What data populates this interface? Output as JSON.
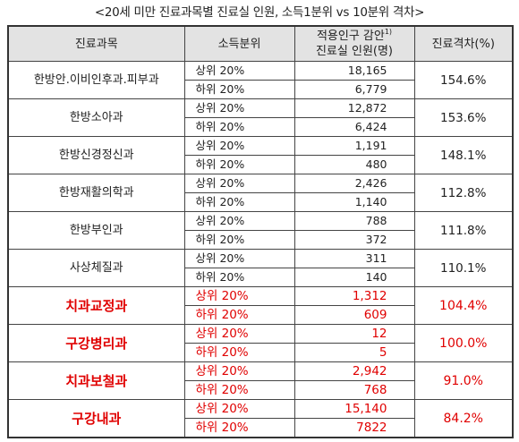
{
  "title": "<20세 미만 진료과목별 진료실 인원, 소득1분위 vs 10분위 격차>",
  "headers": {
    "subject": "진료과목",
    "income": "소득분위",
    "count_line1": "적용인구 감안",
    "count_sup": "1)",
    "count_line2": "진료실 인원(명)",
    "gap": "진료격차(%)"
  },
  "rows": [
    {
      "subject": "한방안.이비인후과.피부과",
      "top_label": "상위 20%",
      "top_value": "18,165",
      "bottom_label": "하위 20%",
      "bottom_value": "6,779",
      "gap": "154.6%",
      "highlight": false
    },
    {
      "subject": "한방소아과",
      "top_label": "상위 20%",
      "top_value": "12,872",
      "bottom_label": "하위 20%",
      "bottom_value": "6,424",
      "gap": "153.6%",
      "highlight": false
    },
    {
      "subject": "한방신경정신과",
      "top_label": "상위 20%",
      "top_value": "1,191",
      "bottom_label": "하위 20%",
      "bottom_value": "480",
      "gap": "148.1%",
      "highlight": false
    },
    {
      "subject": "한방재활의학과",
      "top_label": "상위 20%",
      "top_value": "2,426",
      "bottom_label": "하위 20%",
      "bottom_value": "1,140",
      "gap": "112.8%",
      "highlight": false
    },
    {
      "subject": "한방부인과",
      "top_label": "상위 20%",
      "top_value": "788",
      "bottom_label": "하위 20%",
      "bottom_value": "372",
      "gap": "111.8%",
      "highlight": false
    },
    {
      "subject": "사상체질과",
      "top_label": "상위 20%",
      "top_value": "311",
      "bottom_label": "하위 20%",
      "bottom_value": "140",
      "gap": "110.1%",
      "highlight": false
    },
    {
      "subject": "치과교정과",
      "top_label": "상위 20%",
      "top_value": "1,312",
      "bottom_label": "하위 20%",
      "bottom_value": "609",
      "gap": "104.4%",
      "highlight": true
    },
    {
      "subject": "구강병리과",
      "top_label": "상위 20%",
      "top_value": "12",
      "bottom_label": "하위 20%",
      "bottom_value": "5",
      "gap": "100.0%",
      "highlight": true
    },
    {
      "subject": "치과보철과",
      "top_label": "상위 20%",
      "top_value": "2,942",
      "bottom_label": "하위 20%",
      "bottom_value": "768",
      "gap": "91.0%",
      "highlight": true
    },
    {
      "subject": "구강내과",
      "top_label": "상위 20%",
      "top_value": "15,140",
      "bottom_label": "하위 20%",
      "bottom_value": "7822",
      "gap": "84.2%",
      "highlight": true
    }
  ],
  "colors": {
    "header_bg": "#e3e3e3",
    "highlight_text": "#e00000",
    "text": "#222222"
  }
}
